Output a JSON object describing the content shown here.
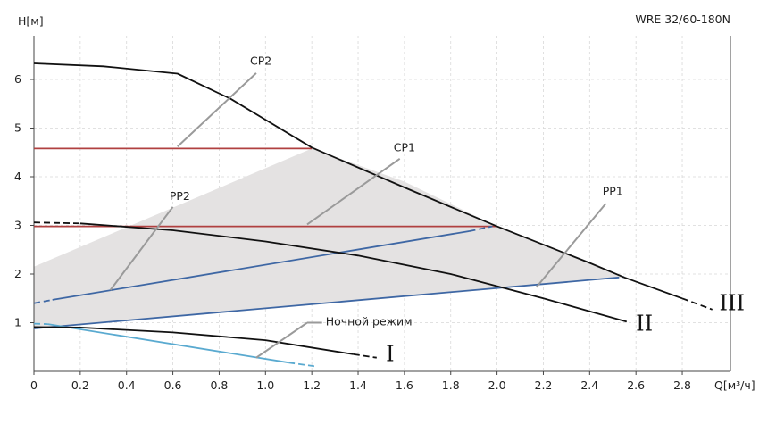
{
  "chart_data": {
    "type": "line",
    "title": "WRE 32/60-180N",
    "ylabel": "H[м]",
    "xlabel": "Q[м³/ч]",
    "xlim": [
      0,
      3.0
    ],
    "ylim": [
      0,
      7.0
    ],
    "x_ticks": [
      "0",
      "0.2",
      "0.4",
      "0.6",
      "0.8",
      "1.0",
      "1.2",
      "1.4",
      "1.6",
      "1.8",
      "2.0",
      "2.2",
      "2.4",
      "2.6",
      "2.8"
    ],
    "y_ticks": [
      "1",
      "2",
      "3",
      "4",
      "5",
      "6"
    ],
    "grid": true,
    "operating_area": [
      [
        0,
        2.15
      ],
      [
        1.2,
        4.58
      ],
      [
        1.6,
        3.9
      ],
      [
        2.0,
        2.98
      ],
      [
        2.4,
        2.22
      ],
      [
        2.55,
        1.93
      ],
      [
        0,
        0.88
      ]
    ],
    "curves": [
      {
        "name": "III",
        "color": "#111111",
        "points": [
          [
            0,
            6.33
          ],
          [
            0.3,
            6.27
          ],
          [
            0.62,
            6.12
          ],
          [
            0.85,
            5.6
          ],
          [
            1.2,
            4.6
          ],
          [
            1.6,
            3.78
          ],
          [
            2.0,
            2.98
          ],
          [
            2.4,
            2.23
          ],
          [
            2.55,
            1.93
          ],
          [
            2.8,
            1.5
          ]
        ],
        "dash_to": [
          [
            2.8,
            1.5
          ],
          [
            2.93,
            1.27
          ]
        ]
      },
      {
        "name": "II",
        "color": "#111111",
        "points": [
          [
            0.2,
            3.04
          ],
          [
            0.6,
            2.9
          ],
          [
            1.0,
            2.67
          ],
          [
            1.4,
            2.38
          ],
          [
            1.8,
            2.0
          ],
          [
            2.2,
            1.5
          ],
          [
            2.56,
            1.02
          ]
        ],
        "dash_to": [
          [
            0,
            3.06
          ],
          [
            0.2,
            3.04
          ]
        ]
      },
      {
        "name": "I",
        "color": "#111111",
        "points": [
          [
            0,
            0.91
          ],
          [
            0.2,
            0.9
          ],
          [
            0.6,
            0.8
          ],
          [
            1.0,
            0.64
          ],
          [
            1.38,
            0.35
          ]
        ],
        "dash_to": [
          [
            1.38,
            0.35
          ],
          [
            1.48,
            0.28
          ]
        ]
      }
    ],
    "lines": [
      {
        "name": "CP2",
        "color": "#b04040",
        "points": [
          [
            0,
            4.58
          ],
          [
            1.2,
            4.58
          ]
        ]
      },
      {
        "name": "CP1",
        "color": "#b04040",
        "points": [
          [
            0,
            2.98
          ],
          [
            2.0,
            2.98
          ]
        ]
      },
      {
        "name": "PP2",
        "color": "#3e67a4",
        "points": [
          [
            0.08,
            1.47
          ],
          [
            1.88,
            2.88
          ]
        ],
        "dash_left": [
          [
            0,
            1.4
          ],
          [
            0.08,
            1.47
          ]
        ],
        "dash_right": [
          [
            1.88,
            2.88
          ],
          [
            1.98,
            2.98
          ]
        ]
      },
      {
        "name": "PP1",
        "color": "#3e67a4",
        "points": [
          [
            0,
            0.88
          ],
          [
            2.5,
            1.92
          ]
        ],
        "dash_right": [
          [
            2.5,
            1.92
          ],
          [
            2.55,
            1.94
          ]
        ]
      },
      {
        "name": "Ночной режим",
        "color": "#5aaad0",
        "points": [
          [
            0.06,
            0.97
          ],
          [
            1.1,
            0.18
          ]
        ],
        "dash_left": [
          [
            0,
            0.98
          ],
          [
            0.06,
            0.97
          ]
        ],
        "dash_right": [
          [
            1.1,
            0.18
          ],
          [
            1.22,
            0.1
          ]
        ]
      }
    ],
    "annotations": [
      {
        "text": "CP2",
        "text_at": [
          0.98,
          6.38
        ],
        "from": [
          0.96,
          6.13
        ],
        "to": [
          0.62,
          4.62
        ]
      },
      {
        "text": "CP1",
        "text_at": [
          1.6,
          4.6
        ],
        "from": [
          1.58,
          4.37
        ],
        "to": [
          1.18,
          3.02
        ]
      },
      {
        "text": "PP2",
        "text_at": [
          0.63,
          3.6
        ],
        "from": [
          0.6,
          3.38
        ],
        "to": [
          0.33,
          1.67
        ]
      },
      {
        "text": "PP1",
        "text_at": [
          2.5,
          3.7
        ],
        "from": [
          2.47,
          3.45
        ],
        "to": [
          2.17,
          1.73
        ]
      },
      {
        "text": "Ночной режим",
        "text_at": [
          1.26,
          1.02
        ],
        "from": [
          1.18,
          1.0
        ],
        "to": [
          0.96,
          0.28
        ]
      }
    ],
    "curve_labels": [
      {
        "text": "III",
        "at": [
          2.96,
          1.42
        ]
      },
      {
        "text": "II",
        "at": [
          2.6,
          1.0
        ]
      },
      {
        "text": "I",
        "at": [
          1.52,
          0.38
        ]
      }
    ]
  }
}
